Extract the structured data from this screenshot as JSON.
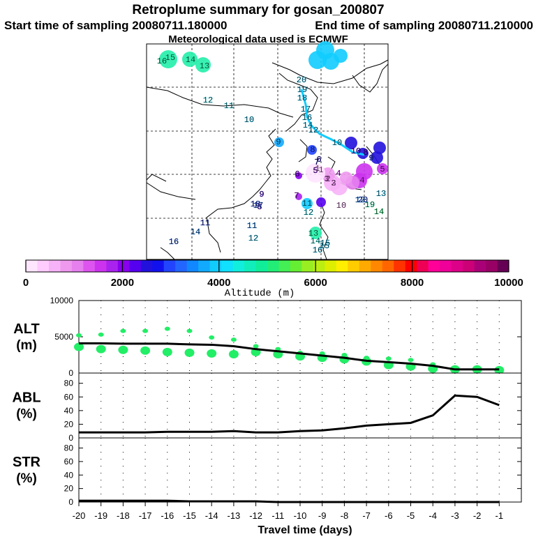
{
  "header": {
    "title": "Retroplume summary for gosan_200807",
    "start": "Start time of sampling 20080711.180000",
    "end": "End time of sampling 20080711.210000",
    "met": "Meteorological data used is ECMWF"
  },
  "colorbar": {
    "ticks": [
      "0",
      "2000",
      "4000",
      "6000",
      "8000",
      "10000"
    ],
    "label": "Altitude (m)",
    "range": [
      0,
      10000
    ],
    "colors": [
      "#ffe6ff",
      "#ffccff",
      "#f7b3f7",
      "#ee99ee",
      "#e680ee",
      "#dd55ee",
      "#cc33ee",
      "#aa22ee",
      "#8800ee",
      "#5500ee",
      "#2211dd",
      "#1111ee",
      "#2244ff",
      "#2266ff",
      "#1188ff",
      "#11aaff",
      "#11ccff",
      "#11e0ff",
      "#11eedd",
      "#11eebb",
      "#11ee99",
      "#22ee77",
      "#44ee55",
      "#66ee33",
      "#99ee22",
      "#bbee11",
      "#ddee00",
      "#ffee00",
      "#ffcc00",
      "#ffaa00",
      "#ff8800",
      "#ff6600",
      "#ff3300",
      "#ff0000",
      "#ee0055",
      "#ff0099",
      "#ee0099",
      "#dd0088",
      "#cc0077",
      "#aa0077",
      "#990066",
      "#660055"
    ]
  },
  "map_labels": [
    {
      "t": "16",
      "c": "#22eeaa"
    },
    {
      "t": "15",
      "c": "#22eeaa"
    },
    {
      "t": "14",
      "c": "#22eeaa"
    },
    {
      "t": "13",
      "c": "#22eeaa"
    },
    {
      "t": "12",
      "c": "#11ddee"
    },
    {
      "t": "11",
      "c": "#11ddee"
    },
    {
      "t": "10",
      "c": "#11ccff"
    },
    {
      "t": "9",
      "c": "#11aaff"
    },
    {
      "t": "20",
      "c": "#11ccff"
    },
    {
      "t": "19",
      "c": "#11ccff"
    },
    {
      "t": "18",
      "c": "#11ccff"
    },
    {
      "t": "17",
      "c": "#11ccff"
    },
    {
      "t": "16",
      "c": "#11ccff"
    },
    {
      "t": "14",
      "c": "#11ccff"
    },
    {
      "t": "12",
      "c": "#11ccff"
    },
    {
      "t": "10",
      "c": "#11ccff"
    },
    {
      "t": "8",
      "c": "#2244ff"
    },
    {
      "t": "7",
      "c": "#2211dd"
    },
    {
      "t": "6",
      "c": "#2211dd"
    },
    {
      "t": "5",
      "c": "#8800ee"
    },
    {
      "t": "4",
      "c": "#cc33ee"
    },
    {
      "t": "3",
      "c": "#e680ee"
    },
    {
      "t": "2",
      "c": "#ee99ee"
    },
    {
      "t": "1",
      "c": "#f7b3f7"
    },
    {
      "t": "5",
      "c": "#cc33ee"
    },
    {
      "t": "4",
      "c": "#cc33ee"
    },
    {
      "t": "3",
      "c": "#e680ee"
    },
    {
      "t": "2",
      "c": "#e680ee"
    },
    {
      "t": "1",
      "c": "#f7b3f7"
    },
    {
      "t": "6",
      "c": "#8800ee"
    },
    {
      "t": "7",
      "c": "#aa22ee"
    },
    {
      "t": "8",
      "c": "#5500ee"
    },
    {
      "t": "9",
      "c": "#5500ee"
    },
    {
      "t": "10",
      "c": "#ee99ee"
    },
    {
      "t": "11",
      "c": "#11ccff"
    },
    {
      "t": "12",
      "c": "#11ddee"
    },
    {
      "t": "13",
      "c": "#22eeaa"
    },
    {
      "t": "14",
      "c": "#11eedd"
    },
    {
      "t": "15",
      "c": "#11ccff"
    },
    {
      "t": "16",
      "c": "#11ccff"
    },
    {
      "t": "17",
      "c": "#2266ff"
    },
    {
      "t": "18",
      "c": "#2244ff"
    },
    {
      "t": "19",
      "c": "#22eeaa"
    },
    {
      "t": "20",
      "c": "#2244ff"
    },
    {
      "t": "8",
      "c": "#5500ee"
    },
    {
      "t": "9",
      "c": "#2244ff"
    },
    {
      "t": "10",
      "c": "#5500ee"
    },
    {
      "t": "11",
      "c": "#1188ff"
    },
    {
      "t": "12",
      "c": "#11ccff"
    },
    {
      "t": "13",
      "c": "#11ccff"
    },
    {
      "t": "14",
      "c": "#22ee77"
    },
    {
      "t": "12",
      "c": "#1188ff"
    },
    {
      "t": "11",
      "c": "#2244ff"
    },
    {
      "t": "14",
      "c": "#1188ff"
    },
    {
      "t": "16",
      "c": "#2266ff"
    },
    {
      "t": "15",
      "c": "#11ccff"
    }
  ],
  "chart_data": {
    "type": "line",
    "x_label": "Travel time (days)",
    "x_ticks": [
      "-20",
      "-19",
      "-18",
      "-17",
      "-16",
      "-15",
      "-14",
      "-13",
      "-12",
      "-11",
      "-10",
      "-9",
      "-8",
      "-7",
      "-6",
      "-5",
      "-4",
      "-3",
      "-2",
      "-1"
    ],
    "xlim": [
      -20,
      0
    ],
    "panels": [
      {
        "id": "alt",
        "title": "ALT",
        "units": "(m)",
        "ylim": [
          0,
          10000
        ],
        "y_ticks": [
          "0",
          "5000",
          "10000"
        ],
        "line": {
          "x": [
            -20,
            -19,
            -18,
            -17,
            -16,
            -15,
            -14,
            -13,
            -12,
            -11,
            -10,
            -9,
            -8,
            -7,
            -6,
            -5,
            -4,
            -3,
            -2,
            -1
          ],
          "y": [
            4100,
            4100,
            4050,
            4050,
            4050,
            3950,
            3900,
            3700,
            3300,
            3000,
            2700,
            2400,
            2100,
            1700,
            1500,
            1300,
            1000,
            500,
            500,
            500
          ]
        },
        "markers_upper": {
          "x": [
            -20,
            -19,
            -18,
            -17,
            -16,
            -15,
            -14,
            -13,
            -12,
            -11,
            -10,
            -9,
            -8,
            -7,
            -6,
            -5,
            -4,
            -3,
            -2,
            -1
          ],
          "y": [
            5200,
            5300,
            5800,
            5800,
            6100,
            5800,
            4900,
            4600,
            3700,
            3300,
            2800,
            2700,
            2500,
            2100,
            2000,
            1800,
            1200,
            700,
            600,
            600
          ]
        },
        "markers_lower": {
          "x": [
            -20,
            -19,
            -18,
            -17,
            -16,
            -15,
            -14,
            -13,
            -12,
            -11,
            -10,
            -9,
            -8,
            -7,
            -6,
            -5,
            -4,
            -3,
            -2,
            -1
          ],
          "y": [
            3600,
            3300,
            3200,
            3100,
            2900,
            2800,
            2700,
            2600,
            2900,
            2600,
            2300,
            2100,
            1900,
            1600,
            1100,
            900,
            600,
            500,
            500,
            400
          ]
        }
      },
      {
        "id": "abl",
        "title": "ABL",
        "units": "(%)",
        "ylim": [
          0,
          95
        ],
        "y_ticks": [
          "0",
          "20",
          "40",
          "60",
          "80"
        ],
        "line": {
          "x": [
            -20,
            -19,
            -18,
            -17,
            -16,
            -15,
            -14,
            -13,
            -12,
            -11,
            -10,
            -9,
            -8,
            -7,
            -6,
            -5,
            -4,
            -3,
            -2,
            -1
          ],
          "y": [
            8,
            8,
            8,
            8,
            9,
            9,
            9,
            10,
            8,
            8,
            10,
            11,
            14,
            18,
            20,
            22,
            33,
            62,
            60,
            48
          ]
        }
      },
      {
        "id": "str",
        "title": "STR",
        "units": "(%)",
        "ylim": [
          0,
          95
        ],
        "y_ticks": [
          "0",
          "20",
          "40",
          "60",
          "80"
        ],
        "line": {
          "x": [
            -20,
            -19,
            -18,
            -17,
            -16,
            -15,
            -14,
            -13,
            -12,
            -11,
            -10,
            -9,
            -8,
            -7,
            -6,
            -5,
            -4,
            -3,
            -2,
            -1
          ],
          "y": [
            2,
            2,
            2,
            2,
            2,
            1,
            1,
            1,
            1,
            0,
            0,
            0,
            0,
            0,
            0,
            0,
            0,
            0,
            0,
            0
          ]
        }
      }
    ],
    "marker_color": "#22ee66"
  }
}
